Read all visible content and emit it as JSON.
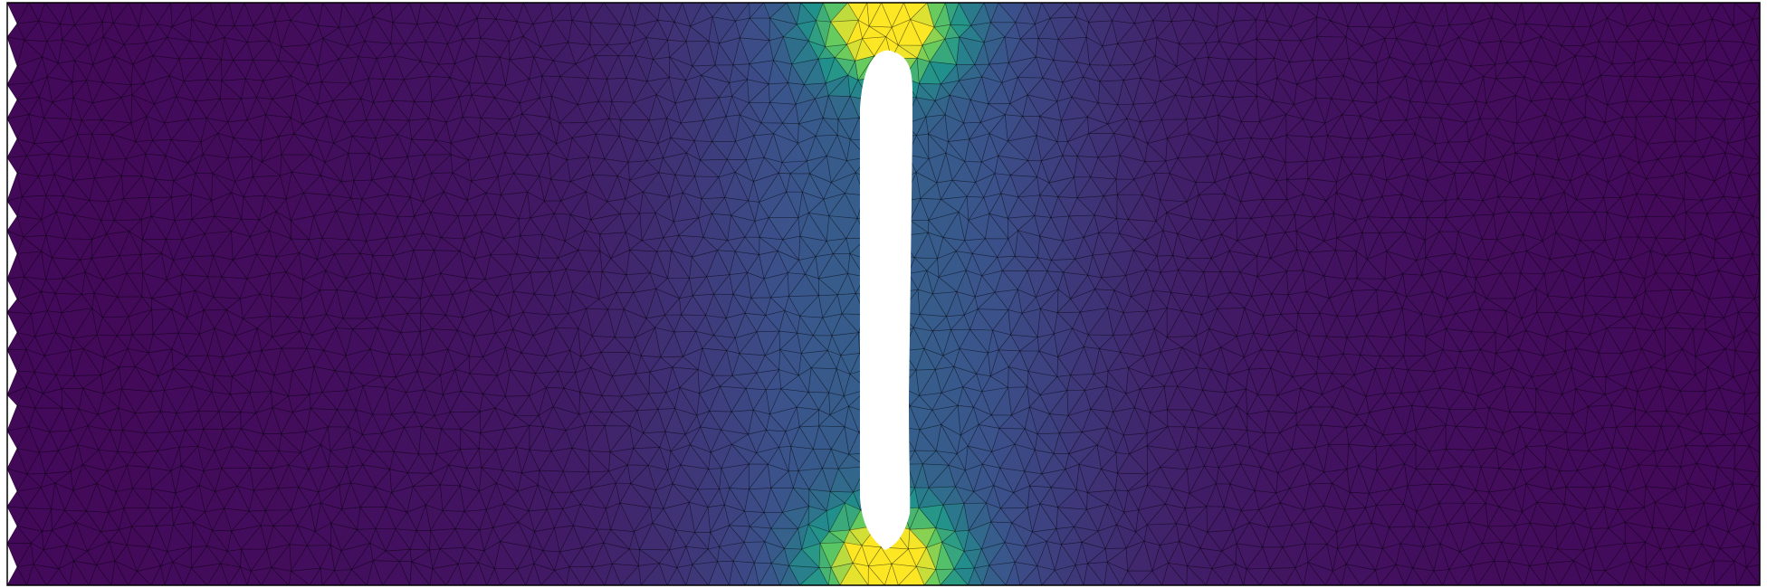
{
  "figure": {
    "kind": "finite-element mesh field plot",
    "description_visible_text": "",
    "colormap": "viridis",
    "colormap_stops": [
      "#440154",
      "#3b528b",
      "#21918c",
      "#5ec962",
      "#fde725"
    ],
    "background_color": "#ffffff",
    "edge_color": "#000000",
    "hole_fill": "#ffffff",
    "border_color": "#000000"
  }
}
